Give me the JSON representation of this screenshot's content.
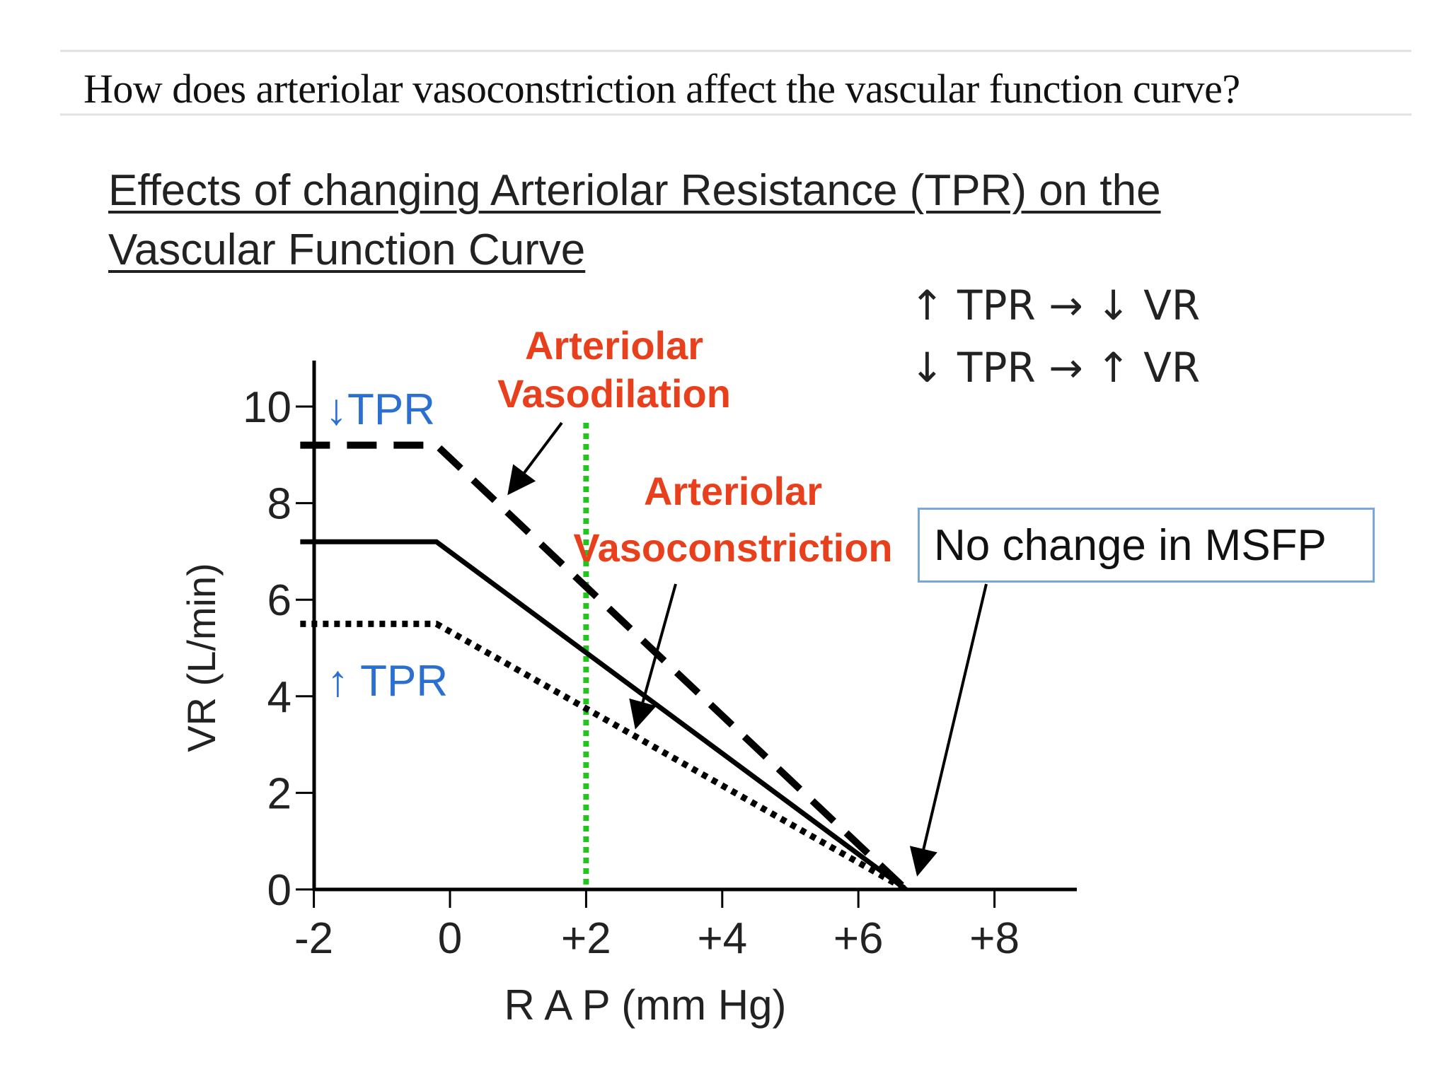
{
  "question": "How does arteriolar vasoconstriction affect the vascular function curve?",
  "slide_title": {
    "line1": "Effects of changing Arteriolar Resistance (TPR) on the",
    "line2": "Vascular Function Curve"
  },
  "callout_box": "No change in MSFP",
  "colors": {
    "red_label": "#e8401c",
    "blue_label": "#2a6fd1",
    "green_line": "#22c41e",
    "curve": "#000000",
    "box_border": "#7aa6d9"
  },
  "chart_data": {
    "type": "line",
    "xlabel": "R A P (mm Hg)",
    "ylabel": "VR (L/min)",
    "xlim": [
      -2.4,
      9.0
    ],
    "ylim": [
      0,
      10.5
    ],
    "x_ticks": [
      {
        "value": -2,
        "label": "-2"
      },
      {
        "value": 0,
        "label": "0"
      },
      {
        "value": 2,
        "label": "+2"
      },
      {
        "value": 4,
        "label": "+4"
      },
      {
        "value": 6,
        "label": "+6"
      },
      {
        "value": 8,
        "label": "+8"
      }
    ],
    "y_ticks": [
      {
        "value": 0,
        "label": "0"
      },
      {
        "value": 2,
        "label": "2"
      },
      {
        "value": 4,
        "label": "4"
      },
      {
        "value": 6,
        "label": "6"
      },
      {
        "value": 8,
        "label": "8"
      },
      {
        "value": 10,
        "label": "10"
      }
    ],
    "series": [
      {
        "name": "decreased-tpr",
        "label": "↓TPR",
        "style": "dashed",
        "x": [
          -2.2,
          -0.2,
          6.7
        ],
        "y": [
          9.2,
          9.2,
          0
        ]
      },
      {
        "name": "normal",
        "label": "",
        "style": "solid",
        "x": [
          -2.2,
          -0.2,
          6.7
        ],
        "y": [
          7.2,
          7.2,
          0
        ]
      },
      {
        "name": "increased-tpr",
        "label": "↑ TPR",
        "style": "dotted",
        "x": [
          -2.2,
          -0.2,
          6.7
        ],
        "y": [
          5.5,
          5.5,
          0
        ]
      }
    ],
    "reference_line": {
      "x": 2,
      "style": "dotted",
      "color": "green"
    },
    "annotations": {
      "vasodilation": {
        "line1": "Arteriolar",
        "line2": "Vasodilation"
      },
      "vasoconstriction": {
        "line1": "Arteriolar",
        "line2": "Vasoconstriction"
      },
      "rule1": "↑ TPR → ↓ VR",
      "rule2": "↓ TPR → ↑ VR",
      "msfp_x": 6.7
    }
  }
}
